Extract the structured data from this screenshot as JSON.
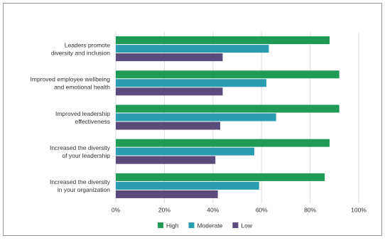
{
  "chart_data": {
    "type": "bar",
    "orientation": "horizontal",
    "categories": [
      [
        "Leaders promote",
        "diversity and inclusion"
      ],
      [
        "Improved employee wellbeing",
        "and emotional health"
      ],
      [
        "Improved leadership",
        "effectiveness"
      ],
      [
        "Increased the diversity",
        "of your leadership"
      ],
      [
        "Increased the diversity",
        "in your organization"
      ]
    ],
    "series": [
      {
        "name": "High",
        "color": "#1f9a57",
        "values": [
          88,
          92,
          92,
          88,
          86
        ]
      },
      {
        "name": "Moderate",
        "color": "#2b9db3",
        "values": [
          63,
          62,
          66,
          57,
          59
        ]
      },
      {
        "name": "Low",
        "color": "#5b4a7c",
        "values": [
          44,
          44,
          43,
          41,
          42
        ]
      }
    ],
    "xlim": [
      0,
      100
    ],
    "xticks": [
      {
        "value": 0,
        "label": "0%"
      },
      {
        "value": 20,
        "label": "20%"
      },
      {
        "value": 40,
        "label": "40%"
      },
      {
        "value": 60,
        "label": "60%"
      },
      {
        "value": 80,
        "label": "80%"
      },
      {
        "value": 100,
        "label": "100%"
      }
    ],
    "grid": true,
    "legend": "bottom"
  }
}
